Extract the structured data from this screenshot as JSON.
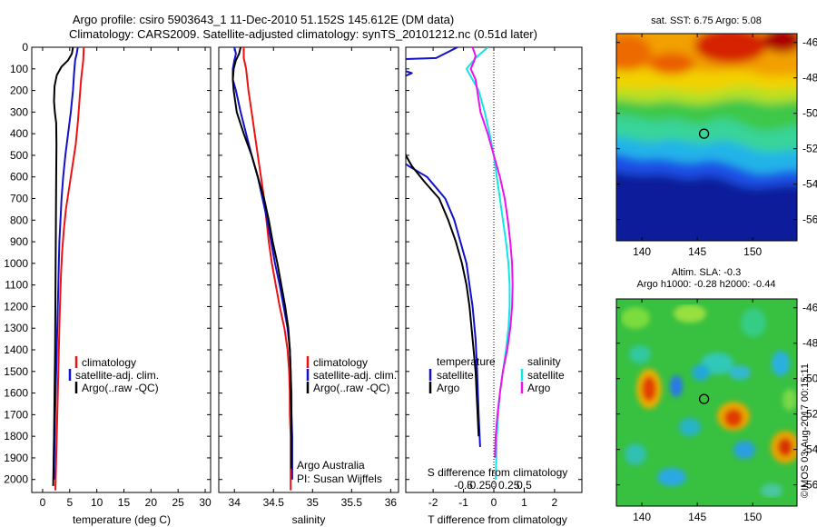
{
  "header": {
    "line1": "Argo profile: csiro 5903643_1 11-Dec-2010 51.152S 145.612E (DM data)",
    "line2": "Climatology: CARS2009. Satellite-adjusted climatology: synTS_20101212.nc (0.51d later)"
  },
  "colors": {
    "climatology": "#ee1111",
    "satellite": "#1111cc",
    "argo": "#000000",
    "sat_salinity": "#11e6e6",
    "argo_salinity": "#ee11ee"
  },
  "chart_data": [
    {
      "id": "temperature",
      "type": "line",
      "xlabel": "temperature (deg C)",
      "xticks": [
        "0",
        "5",
        "10",
        "15",
        "20",
        "25",
        "30"
      ],
      "xlim": [
        -2,
        31
      ],
      "yticks": [
        "0",
        "100",
        "200",
        "300",
        "400",
        "500",
        "600",
        "700",
        "800",
        "900",
        "1000",
        "1100",
        "1200",
        "1300",
        "1400",
        "1500",
        "1600",
        "1700",
        "1800",
        "1900",
        "2000"
      ],
      "ylim": [
        0,
        2060
      ],
      "y_inverted": true,
      "legend": [
        "climatology",
        "satellite-adj. clim.",
        "Argo(..raw -QC)"
      ],
      "series": [
        {
          "name": "climatology",
          "color": "#ee1111",
          "points": [
            [
              7.6,
              0
            ],
            [
              7.5,
              60
            ],
            [
              7.1,
              150
            ],
            [
              6.8,
              250
            ],
            [
              6.5,
              350
            ],
            [
              6.1,
              450
            ],
            [
              5.5,
              550
            ],
            [
              4.9,
              650
            ],
            [
              4.3,
              750
            ],
            [
              3.9,
              850
            ],
            [
              3.6,
              950
            ],
            [
              3.4,
              1050
            ],
            [
              3.2,
              1200
            ],
            [
              3.0,
              1400
            ],
            [
              2.8,
              1600
            ],
            [
              2.6,
              1800
            ],
            [
              2.4,
              2000
            ],
            [
              2.35,
              2050
            ]
          ]
        },
        {
          "name": "satellite-adj. clim.",
          "color": "#1111cc",
          "points": [
            [
              6.5,
              0
            ],
            [
              6.3,
              30
            ],
            [
              6.0,
              60
            ],
            [
              5.8,
              120
            ],
            [
              5.6,
              200
            ],
            [
              5.2,
              300
            ],
            [
              4.7,
              400
            ],
            [
              4.2,
              500
            ],
            [
              3.8,
              600
            ],
            [
              3.5,
              700
            ],
            [
              3.3,
              800
            ],
            [
              3.1,
              900
            ],
            [
              3.0,
              1000
            ],
            [
              2.9,
              1100
            ],
            [
              2.7,
              1300
            ],
            [
              2.5,
              1500
            ],
            [
              2.3,
              1700
            ],
            [
              2.15,
              1900
            ],
            [
              2.1,
              2000
            ]
          ]
        },
        {
          "name": "Argo(..raw -QC)",
          "color": "#000000",
          "points": [
            [
              5.6,
              0
            ],
            [
              5.4,
              30
            ],
            [
              4.7,
              60
            ],
            [
              3.5,
              90
            ],
            [
              2.6,
              130
            ],
            [
              2.2,
              180
            ],
            [
              2.1,
              250
            ],
            [
              2.25,
              300
            ],
            [
              2.5,
              350
            ],
            [
              2.55,
              450
            ],
            [
              2.5,
              600
            ],
            [
              2.45,
              800
            ],
            [
              2.4,
              1000
            ],
            [
              2.35,
              1200
            ],
            [
              2.3,
              1400
            ],
            [
              2.2,
              1600
            ],
            [
              2.1,
              1800
            ],
            [
              2.0,
              1950
            ],
            [
              1.95,
              2030
            ]
          ]
        }
      ]
    },
    {
      "id": "salinity",
      "type": "line",
      "xlabel": "salinity",
      "xticks": [
        "34",
        "34.5",
        "35",
        "35.5",
        "36"
      ],
      "xlim": [
        33.8,
        36.1
      ],
      "yticks": [],
      "ylim": [
        0,
        2060
      ],
      "y_inverted": true,
      "legend": [
        "climatology",
        "satellite-adj. clim.",
        "Argo(..raw -QC)"
      ],
      "annotations": [
        "Argo Australia",
        "PI: Susan Wijffels"
      ],
      "series": [
        {
          "name": "climatology",
          "color": "#ee1111",
          "points": [
            [
              34.12,
              0
            ],
            [
              34.12,
              50
            ],
            [
              34.15,
              100
            ],
            [
              34.18,
              200
            ],
            [
              34.22,
              300
            ],
            [
              34.26,
              400
            ],
            [
              34.3,
              500
            ],
            [
              34.34,
              600
            ],
            [
              34.38,
              700
            ],
            [
              34.41,
              800
            ],
            [
              34.44,
              900
            ],
            [
              34.48,
              1000
            ],
            [
              34.53,
              1100
            ],
            [
              34.58,
              1200
            ],
            [
              34.64,
              1300
            ],
            [
              34.68,
              1400
            ],
            [
              34.7,
              1500
            ],
            [
              34.71,
              1600
            ],
            [
              34.71,
              1700
            ],
            [
              34.72,
              1800
            ],
            [
              34.72,
              1900
            ],
            [
              34.72,
              2000
            ],
            [
              34.72,
              2050
            ]
          ]
        },
        {
          "name": "satellite-adj. clim.",
          "color": "#1111cc",
          "points": [
            [
              34.0,
              0
            ],
            [
              34.02,
              30
            ],
            [
              34.0,
              60
            ],
            [
              33.98,
              100
            ],
            [
              33.98,
              150
            ],
            [
              34.02,
              200
            ],
            [
              34.08,
              300
            ],
            [
              34.15,
              400
            ],
            [
              34.22,
              500
            ],
            [
              34.3,
              600
            ],
            [
              34.36,
              700
            ],
            [
              34.42,
              800
            ],
            [
              34.47,
              900
            ],
            [
              34.52,
              1000
            ],
            [
              34.58,
              1100
            ],
            [
              34.63,
              1200
            ],
            [
              34.68,
              1300
            ],
            [
              34.71,
              1400
            ],
            [
              34.72,
              1500
            ],
            [
              34.73,
              1600
            ],
            [
              34.73,
              1700
            ],
            [
              34.74,
              1800
            ],
            [
              34.74,
              1900
            ],
            [
              34.74,
              2000
            ]
          ]
        },
        {
          "name": "Argo(..raw -QC)",
          "color": "#000000",
          "points": [
            [
              34.08,
              0
            ],
            [
              34.06,
              30
            ],
            [
              34.02,
              60
            ],
            [
              33.99,
              100
            ],
            [
              33.98,
              150
            ],
            [
              33.99,
              200
            ],
            [
              34.03,
              300
            ],
            [
              34.12,
              400
            ],
            [
              34.22,
              500
            ],
            [
              34.3,
              600
            ],
            [
              34.38,
              700
            ],
            [
              34.44,
              800
            ],
            [
              34.49,
              900
            ],
            [
              34.55,
              1000
            ],
            [
              34.6,
              1100
            ],
            [
              34.65,
              1200
            ],
            [
              34.69,
              1300
            ],
            [
              34.71,
              1400
            ],
            [
              34.72,
              1500
            ],
            [
              34.72,
              1600
            ],
            [
              34.73,
              1700
            ],
            [
              34.73,
              1800
            ],
            [
              34.73,
              1900
            ],
            [
              34.73,
              1950
            ]
          ]
        }
      ]
    },
    {
      "id": "difference",
      "type": "line",
      "xlabel": "T difference from climatology",
      "xticks": [
        "-2",
        "-1",
        "0",
        "1",
        "2"
      ],
      "xlim": [
        -2.9,
        2.9
      ],
      "xlabel_top": "S difference from climatology",
      "xticks_top": [
        "-0.5",
        "-0.25",
        "0",
        "0.25",
        "0.5"
      ],
      "ylim": [
        0,
        2060
      ],
      "y_inverted": true,
      "zero_line": "dotted",
      "legend_headers": [
        "temperature",
        "salinity"
      ],
      "legend": [
        "satellite",
        "Argo",
        "satellite",
        "Argo"
      ],
      "series": [
        {
          "name": "temperature satellite",
          "color": "#1111cc",
          "points": [
            [
              -1.2,
              0
            ],
            [
              -1.9,
              50
            ],
            [
              -4.0,
              60
            ],
            [
              -2.7,
              120
            ],
            [
              -3.2,
              150
            ],
            [
              -3.5,
              200
            ],
            [
              -3.6,
              400
            ],
            [
              -3.3,
              500
            ],
            [
              -2.8,
              550
            ],
            [
              -2.2,
              600
            ],
            [
              -1.6,
              700
            ],
            [
              -1.3,
              800
            ],
            [
              -1.1,
              900
            ],
            [
              -0.9,
              1000
            ],
            [
              -0.8,
              1100
            ],
            [
              -0.7,
              1200
            ],
            [
              -0.6,
              1350
            ],
            [
              -0.55,
              1500
            ],
            [
              -0.5,
              1700
            ],
            [
              -0.45,
              1850
            ]
          ]
        },
        {
          "name": "temperature Argo",
          "color": "#000000",
          "points": [
            [
              -4.0,
              55
            ],
            [
              -3.6,
              100
            ],
            [
              -4.0,
              150
            ],
            [
              -3.6,
              300
            ],
            [
              -3.1,
              400
            ],
            [
              -2.9,
              500
            ],
            [
              -2.7,
              550
            ],
            [
              -2.3,
              620
            ],
            [
              -1.8,
              700
            ],
            [
              -1.5,
              800
            ],
            [
              -1.25,
              900
            ],
            [
              -1.05,
              1000
            ],
            [
              -0.9,
              1100
            ],
            [
              -0.8,
              1200
            ],
            [
              -0.7,
              1350
            ],
            [
              -0.6,
              1500
            ],
            [
              -0.55,
              1650
            ],
            [
              -0.5,
              1800
            ]
          ]
        },
        {
          "name": "salinity satellite",
          "color": "#11e6e6",
          "points": [
            [
              -0.1,
              0
            ],
            [
              -0.3,
              50
            ],
            [
              -0.45,
              100
            ],
            [
              -0.25,
              200
            ],
            [
              -0.15,
              300
            ],
            [
              -0.07,
              400
            ],
            [
              0.0,
              500
            ],
            [
              0.05,
              600
            ],
            [
              0.1,
              700
            ],
            [
              0.15,
              800
            ],
            [
              0.2,
              900
            ],
            [
              0.24,
              1000
            ],
            [
              0.26,
              1100
            ],
            [
              0.26,
              1200
            ],
            [
              0.24,
              1300
            ],
            [
              0.2,
              1400
            ],
            [
              0.15,
              1500
            ],
            [
              0.1,
              1600
            ],
            [
              0.07,
              1700
            ],
            [
              0.05,
              1800
            ],
            [
              0.04,
              1900
            ],
            [
              0.03,
              2000
            ]
          ]
        },
        {
          "name": "salinity Argo",
          "color": "#ee11ee",
          "points": [
            [
              -0.35,
              0
            ],
            [
              -0.3,
              40
            ],
            [
              -0.32,
              60
            ],
            [
              -0.38,
              100
            ],
            [
              -0.3,
              150
            ],
            [
              -0.22,
              300
            ],
            [
              -0.1,
              400
            ],
            [
              0.0,
              500
            ],
            [
              0.1,
              600
            ],
            [
              0.18,
              700
            ],
            [
              0.23,
              800
            ],
            [
              0.27,
              900
            ],
            [
              0.3,
              1000
            ],
            [
              0.31,
              1100
            ],
            [
              0.3,
              1200
            ],
            [
              0.27,
              1300
            ],
            [
              0.22,
              1400
            ],
            [
              0.15,
              1500
            ],
            [
              0.1,
              1600
            ],
            [
              0.06,
              1700
            ],
            [
              0.03,
              1800
            ],
            [
              0.02,
              1900
            ]
          ]
        }
      ]
    },
    {
      "id": "sst_map",
      "type": "heatmap",
      "title": "sat. SST: 6.75  Argo: 5.08",
      "xticks": [
        "140",
        "145",
        "150"
      ],
      "yticks": [
        "-46",
        "-48",
        "-50",
        "-52",
        "-54",
        "-56"
      ],
      "xlim": [
        137.7,
        154.0
      ],
      "ylim": [
        -57.2,
        -45.5
      ],
      "marker": {
        "lon": 145.612,
        "lat": -51.152
      }
    },
    {
      "id": "sla_map",
      "type": "heatmap",
      "title_line1": "Altim. SLA: -0.3",
      "title_line2": "Argo h1000: -0.28  h2000: -0.44",
      "xticks": [
        "140",
        "145",
        "150"
      ],
      "yticks": [
        "-46",
        "-48",
        "-50",
        "-52",
        "-54",
        "-56"
      ],
      "xlim": [
        137.7,
        154.0
      ],
      "ylim": [
        -57.2,
        -45.5
      ],
      "marker": {
        "lon": 145.612,
        "lat": -51.152
      }
    }
  ],
  "credit": "©IMOS 03-Aug-2017 00:15:11"
}
